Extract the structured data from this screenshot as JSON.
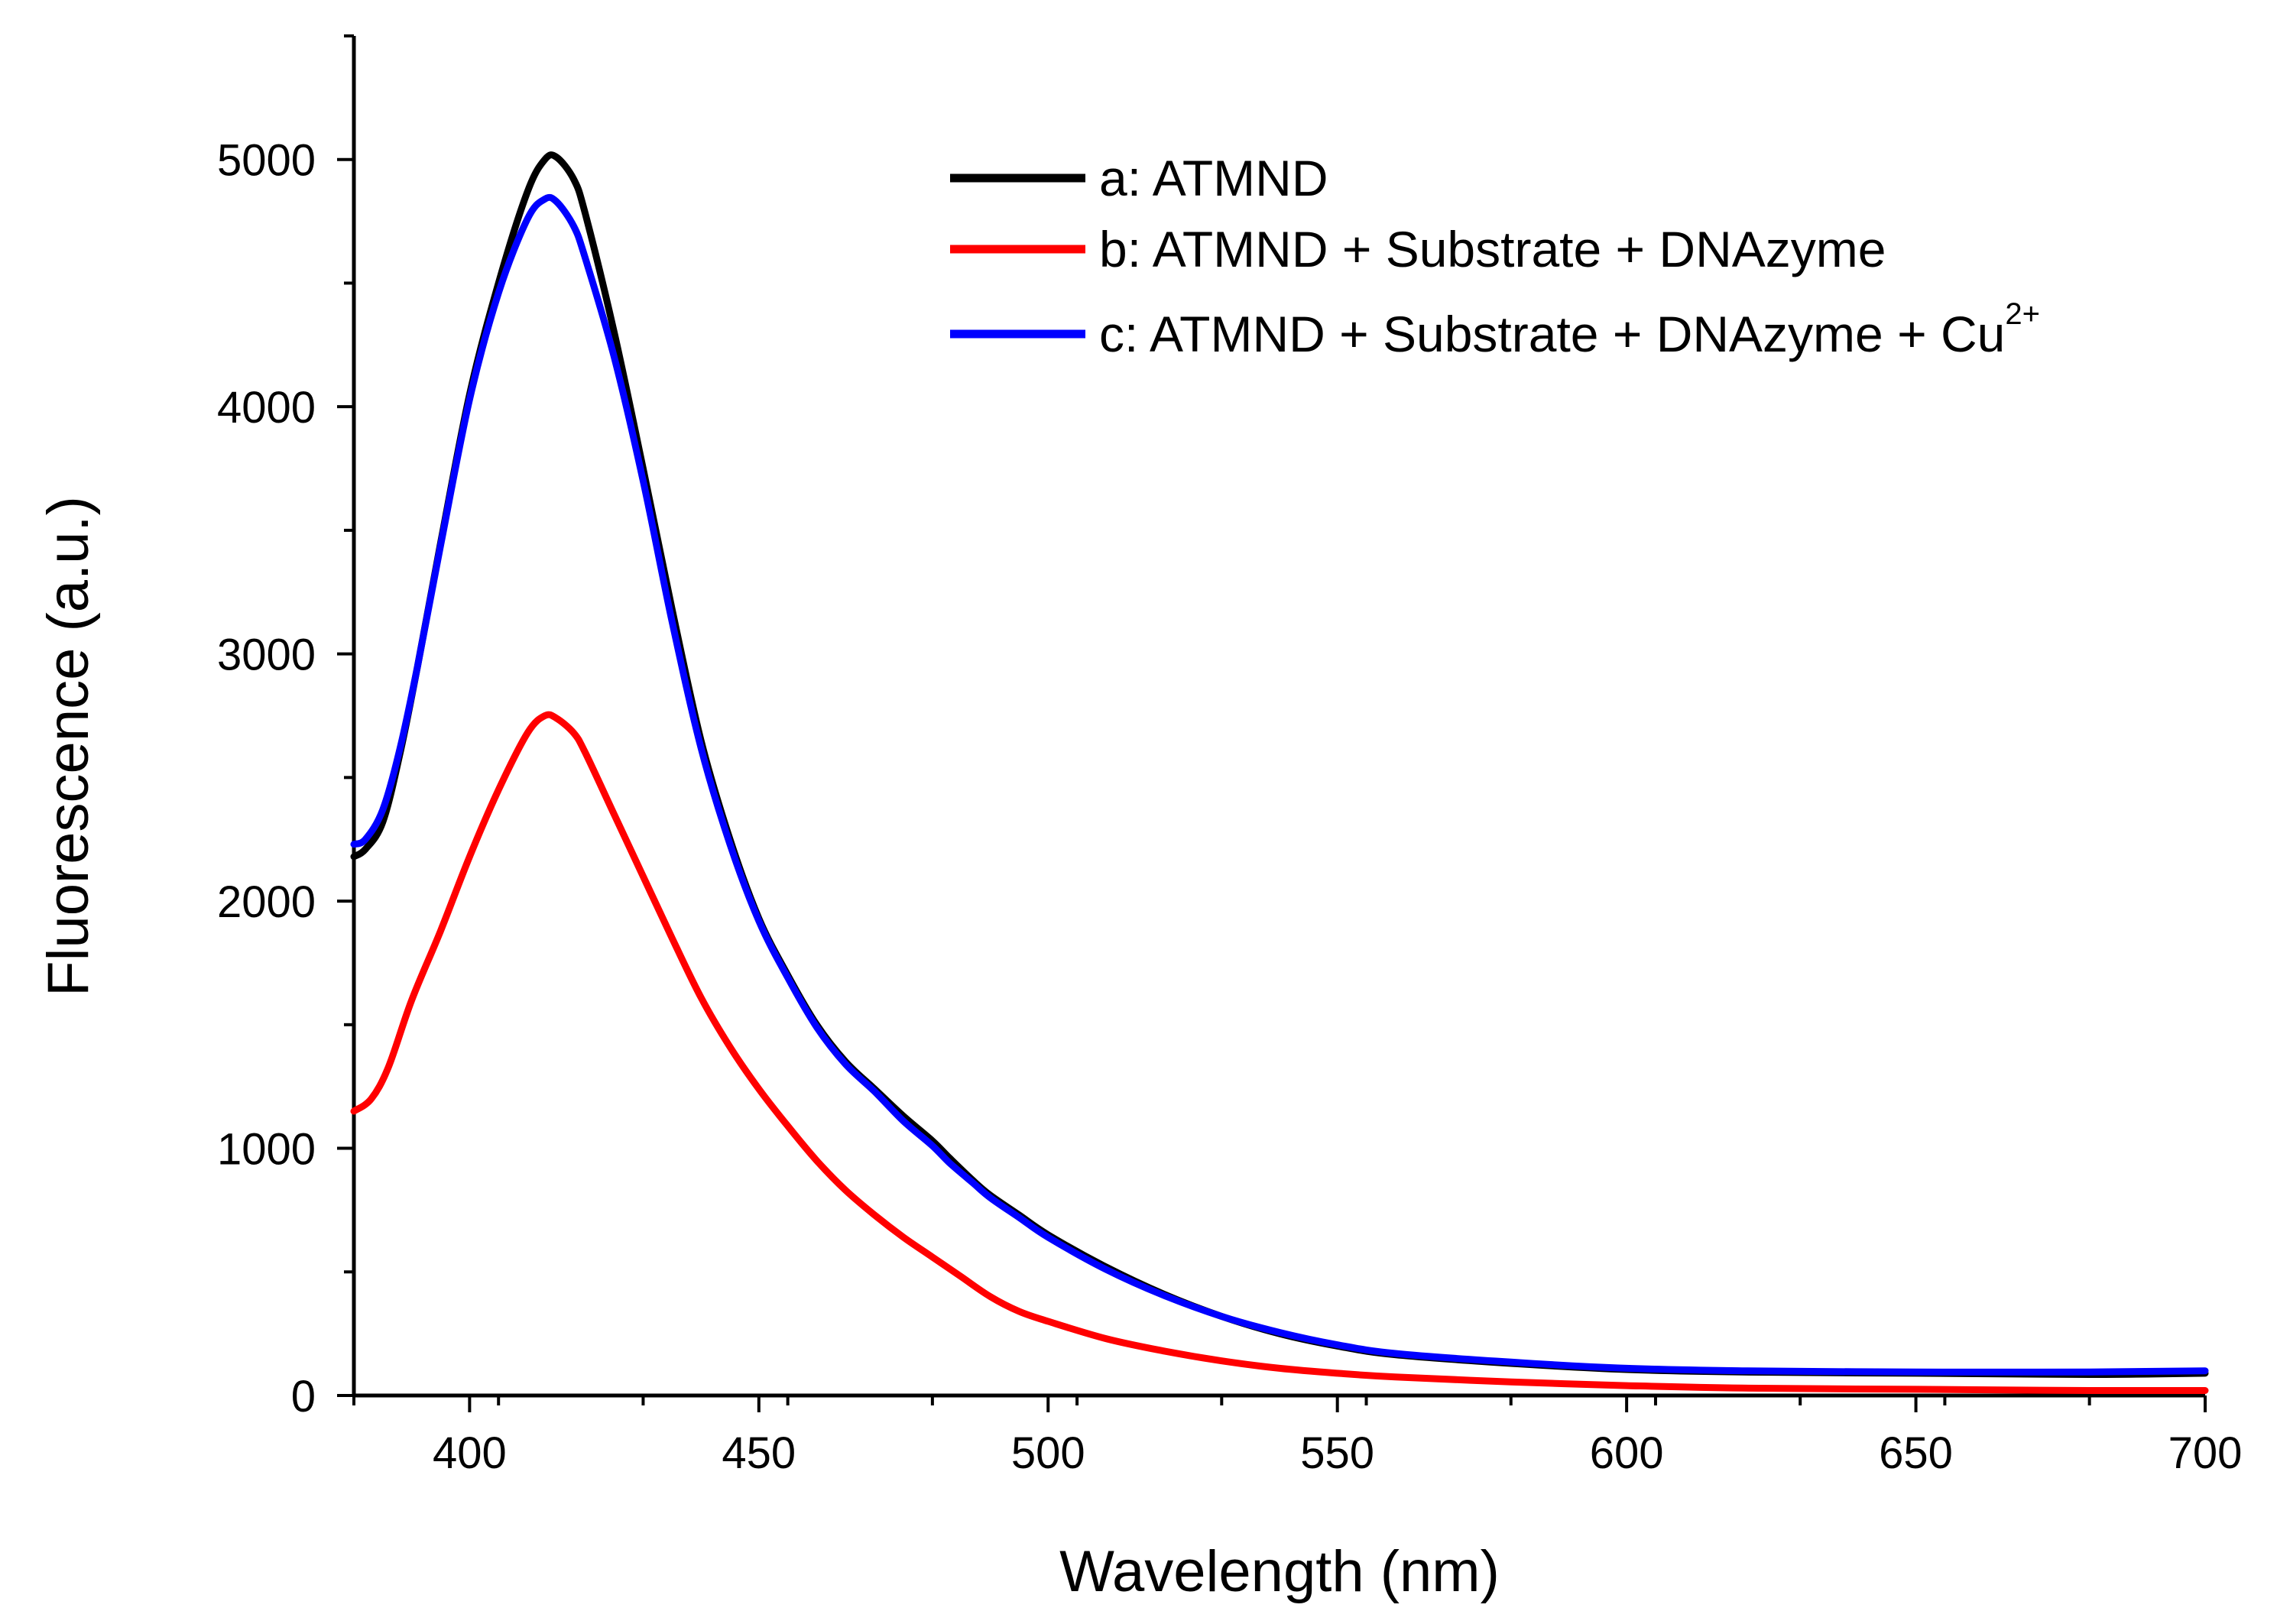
{
  "chart_data": {
    "type": "line",
    "title": "",
    "xlabel": "Wavelength (nm)",
    "ylabel": "Fluorescence (a.u.)",
    "xlim": [
      380,
      700
    ],
    "ylim": [
      0,
      5500
    ],
    "xticks": [
      400,
      450,
      500,
      550,
      600,
      650,
      700
    ],
    "yticks": [
      0,
      1000,
      2000,
      3000,
      4000,
      5000
    ],
    "x_minor_step": 25,
    "y_minor_step": 500,
    "grid": false,
    "legend_position": "top-right",
    "series": [
      {
        "name": "a: ATMND",
        "color": "#000000",
        "x": [
          380,
          382,
          385,
          388,
          391,
          395,
          400,
          405,
          410,
          413,
          415,
          418,
          420,
          425,
          430,
          435,
          440,
          445,
          450,
          455,
          460,
          465,
          470,
          475,
          480,
          483,
          487,
          490,
          495,
          500,
          510,
          520,
          530,
          540,
          550,
          560,
          580,
          600,
          620,
          650,
          680,
          700
        ],
        "y": [
          2180,
          2210,
          2320,
          2600,
          2950,
          3450,
          4050,
          4500,
          4870,
          5000,
          5010,
          4920,
          4780,
          4300,
          3750,
          3180,
          2650,
          2250,
          1930,
          1700,
          1500,
          1350,
          1240,
          1130,
          1030,
          960,
          870,
          810,
          730,
          650,
          520,
          410,
          320,
          250,
          200,
          165,
          130,
          105,
          95,
          90,
          85,
          90
        ]
      },
      {
        "name": "b: ATMND + Substrate + DNAzyme",
        "color": "#ff0000",
        "x": [
          380,
          383,
          386,
          390,
          395,
          400,
          405,
          410,
          413,
          415,
          418,
          420,
          425,
          430,
          435,
          440,
          445,
          450,
          455,
          460,
          465,
          470,
          475,
          480,
          485,
          490,
          495,
          500,
          510,
          520,
          530,
          540,
          550,
          560,
          580,
          600,
          620,
          650,
          680,
          700
        ],
        "y": [
          1150,
          1200,
          1330,
          1600,
          1880,
          2180,
          2450,
          2680,
          2750,
          2740,
          2680,
          2600,
          2350,
          2100,
          1850,
          1610,
          1410,
          1240,
          1090,
          950,
          830,
          730,
          640,
          560,
          480,
          400,
          340,
          300,
          230,
          180,
          140,
          110,
          90,
          75,
          55,
          40,
          30,
          25,
          20,
          20
        ]
      },
      {
        "name": "c: ATMND + Substrate + DNAzyme + Cu",
        "color": "#0000ff",
        "x": [
          380,
          382,
          385,
          388,
          391,
          395,
          400,
          405,
          410,
          413,
          415,
          418,
          420,
          425,
          430,
          435,
          440,
          445,
          450,
          455,
          460,
          465,
          470,
          475,
          480,
          483,
          487,
          490,
          495,
          500,
          510,
          520,
          530,
          540,
          550,
          560,
          580,
          600,
          620,
          650,
          680,
          700
        ],
        "y": [
          2230,
          2250,
          2370,
          2620,
          2950,
          3440,
          4030,
          4460,
          4760,
          4840,
          4830,
          4730,
          4600,
          4200,
          3700,
          3130,
          2620,
          2230,
          1920,
          1690,
          1490,
          1340,
          1230,
          1110,
          1010,
          940,
          860,
          800,
          720,
          640,
          510,
          405,
          320,
          255,
          205,
          170,
          135,
          110,
          100,
          95,
          95,
          100
        ]
      }
    ],
    "legend": [
      {
        "label": "a: ATMND",
        "superscript": ""
      },
      {
        "label": "b: ATMND + Substrate + DNAzyme",
        "superscript": ""
      },
      {
        "label": "c: ATMND + Substrate + DNAzyme + Cu",
        "superscript": "2+"
      }
    ]
  }
}
